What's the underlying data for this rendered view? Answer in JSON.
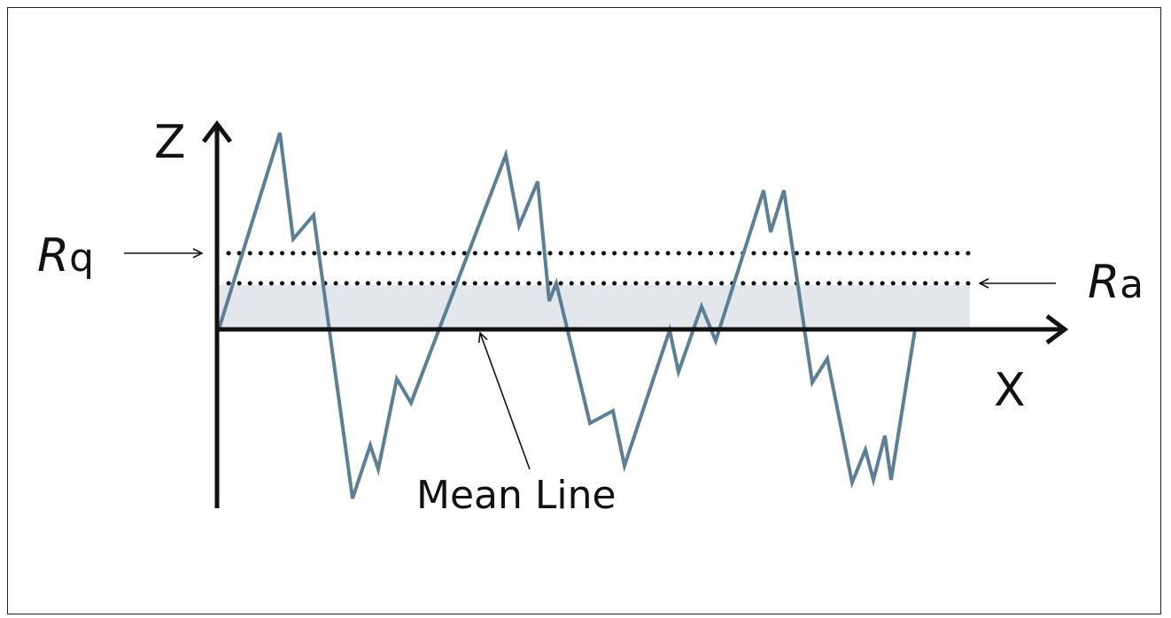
{
  "labels": {
    "z_axis": "Z",
    "x_axis": "X",
    "rq_main": "R",
    "rq_sub": "q",
    "ra_main": "R",
    "ra_sub": "a",
    "mean_line": "Mean Line"
  },
  "colors": {
    "profile": "#5b7f96",
    "shaded_band": "#e3e6ea",
    "axis": "#111111",
    "dotted": "#111111"
  },
  "icons": {
    "rq_pointer": "arrow-right-icon",
    "ra_pointer": "arrow-left-icon",
    "mean_pointer": "arrow-up-left-icon",
    "z_arrowhead": "arrow-up-icon",
    "x_arrowhead": "arrow-right-icon"
  }
}
